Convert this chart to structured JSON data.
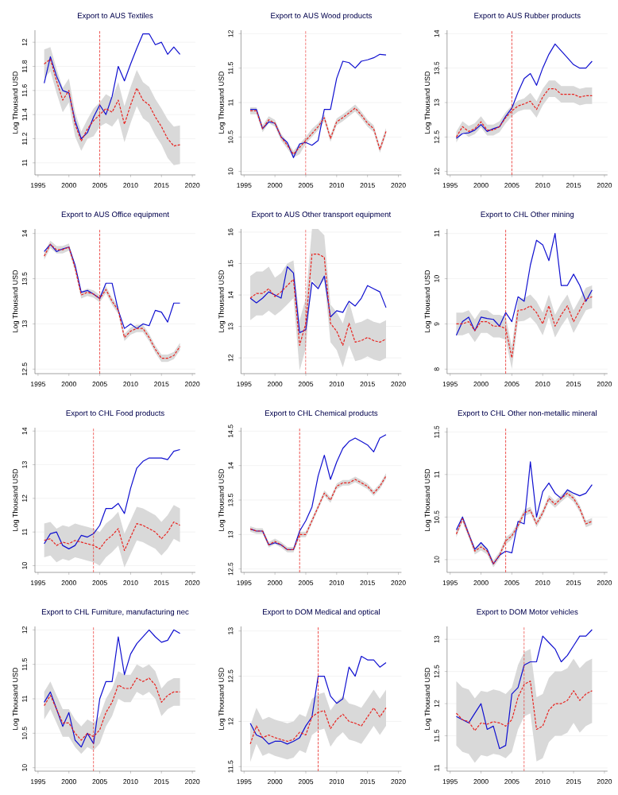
{
  "chart_data": [
    {
      "type": "line",
      "title": "Export to AUS Textiles",
      "ylabel": "Log Thousand USD",
      "x": [
        1996,
        1997,
        1998,
        1999,
        2000,
        2001,
        2002,
        2003,
        2004,
        2005,
        2006,
        2007,
        2008,
        2009,
        2010,
        2011,
        2012,
        2013,
        2014,
        2015,
        2016,
        2017,
        2018
      ],
      "xlim": [
        1994.5,
        2020.5
      ],
      "xticks": [
        1995,
        2000,
        2005,
        2010,
        2015,
        2020
      ],
      "ylim": [
        10.9,
        12.1
      ],
      "yticks": [
        11,
        11.2,
        11.4,
        11.6,
        11.8,
        12
      ],
      "grid": "y",
      "ref_lines": [
        {
          "axis": "x",
          "value": 2005,
          "color": "#e8231f",
          "line_style": "dashed"
        }
      ],
      "series": [
        {
          "color": "#e8231f",
          "line_style": "dashed",
          "values": [
            11.82,
            11.86,
            11.68,
            11.52,
            11.6,
            11.32,
            11.18,
            11.28,
            11.35,
            11.4,
            11.45,
            11.42,
            11.52,
            11.32,
            11.48,
            11.62,
            11.52,
            11.48,
            11.38,
            11.3,
            11.2,
            11.14,
            11.15
          ],
          "lower": [
            11.7,
            11.76,
            11.58,
            11.42,
            11.5,
            11.22,
            11.1,
            11.2,
            11.22,
            11.3,
            11.33,
            11.3,
            11.37,
            11.17,
            11.33,
            11.47,
            11.37,
            11.33,
            11.23,
            11.15,
            11.04,
            10.98,
            10.99
          ],
          "upper": [
            11.94,
            11.96,
            11.78,
            11.62,
            11.7,
            11.42,
            11.26,
            11.36,
            11.45,
            11.5,
            11.57,
            11.54,
            11.67,
            11.47,
            11.63,
            11.77,
            11.67,
            11.63,
            11.53,
            11.45,
            11.36,
            11.3,
            11.31
          ]
        },
        {
          "color": "#1010d0",
          "line_style": "solid",
          "values": [
            11.66,
            11.88,
            11.72,
            11.6,
            11.58,
            11.35,
            11.2,
            11.25,
            11.38,
            11.48,
            11.4,
            11.55,
            11.8,
            11.68,
            11.82,
            11.95,
            12.07,
            12.07,
            11.98,
            12.0,
            11.9,
            11.96,
            11.9
          ]
        }
      ]
    },
    {
      "type": "line",
      "title": "Export to AUS Wood products",
      "ylabel": "Log Thousand USD",
      "x": [
        1996,
        1997,
        1998,
        1999,
        2000,
        2001,
        2002,
        2003,
        2004,
        2005,
        2006,
        2007,
        2008,
        2009,
        2010,
        2011,
        2012,
        2013,
        2014,
        2015,
        2016,
        2017,
        2018
      ],
      "xlim": [
        1994.5,
        2020.5
      ],
      "xticks": [
        1995,
        2000,
        2005,
        2010,
        2015,
        2020
      ],
      "ylim": [
        9.95,
        12.05
      ],
      "yticks": [
        10,
        10.5,
        11,
        11.5,
        12
      ],
      "grid": "y",
      "ref_lines": [
        {
          "axis": "x",
          "value": 2005,
          "color": "#e8231f",
          "line_style": "dashed"
        }
      ],
      "series": [
        {
          "color": "#e8231f",
          "line_style": "dashed",
          "values": [
            10.88,
            10.88,
            10.62,
            10.75,
            10.7,
            10.5,
            10.38,
            10.25,
            10.35,
            10.45,
            10.55,
            10.65,
            10.78,
            10.48,
            10.72,
            10.78,
            10.85,
            10.92,
            10.82,
            10.7,
            10.62,
            10.32,
            10.58
          ],
          "lower": [
            10.83,
            10.83,
            10.57,
            10.7,
            10.65,
            10.45,
            10.33,
            10.2,
            10.25,
            10.4,
            10.5,
            10.6,
            10.73,
            10.43,
            10.67,
            10.73,
            10.8,
            10.87,
            10.77,
            10.65,
            10.57,
            10.27,
            10.53
          ],
          "upper": [
            10.93,
            10.93,
            10.67,
            10.8,
            10.75,
            10.55,
            10.43,
            10.3,
            10.4,
            10.5,
            10.62,
            10.7,
            10.83,
            10.53,
            10.77,
            10.83,
            10.9,
            10.97,
            10.87,
            10.75,
            10.67,
            10.37,
            10.63
          ]
        },
        {
          "color": "#1010d0",
          "line_style": "solid",
          "values": [
            10.9,
            10.9,
            10.62,
            10.72,
            10.7,
            10.5,
            10.42,
            10.2,
            10.4,
            10.42,
            10.38,
            10.45,
            10.9,
            10.9,
            11.35,
            11.6,
            11.58,
            11.5,
            11.6,
            11.62,
            11.65,
            11.7,
            11.69
          ]
        }
      ]
    },
    {
      "type": "line",
      "title": "Export to AUS Rubber products",
      "ylabel": "Log Thousand USD",
      "x": [
        1996,
        1997,
        1998,
        1999,
        2000,
        2001,
        2002,
        2003,
        2004,
        2005,
        2006,
        2007,
        2008,
        2009,
        2010,
        2011,
        2012,
        2013,
        2014,
        2015,
        2016,
        2017,
        2018
      ],
      "xlim": [
        1994.5,
        2020.5
      ],
      "xticks": [
        1995,
        2000,
        2005,
        2010,
        2015,
        2020
      ],
      "ylim": [
        11.95,
        14.05
      ],
      "yticks": [
        12,
        12.5,
        13,
        13.5,
        14
      ],
      "grid": "y",
      "ref_lines": [
        {
          "axis": "x",
          "value": 2005,
          "color": "#e8231f",
          "line_style": "dashed"
        }
      ],
      "series": [
        {
          "color": "#e8231f",
          "line_style": "dashed",
          "values": [
            12.5,
            12.65,
            12.58,
            12.62,
            12.72,
            12.6,
            12.6,
            12.65,
            12.78,
            12.88,
            12.95,
            12.98,
            13.02,
            12.9,
            13.08,
            13.2,
            13.2,
            13.12,
            13.12,
            13.12,
            13.08,
            13.1,
            13.1
          ],
          "lower": [
            12.42,
            12.57,
            12.5,
            12.54,
            12.64,
            12.52,
            12.52,
            12.57,
            12.7,
            12.8,
            12.87,
            12.9,
            12.9,
            12.78,
            12.96,
            13.08,
            13.08,
            13.0,
            13.0,
            13.0,
            12.96,
            12.98,
            12.98
          ],
          "upper": [
            12.58,
            12.73,
            12.66,
            12.7,
            12.8,
            12.68,
            12.68,
            12.73,
            12.86,
            12.96,
            13.03,
            13.06,
            13.14,
            13.02,
            13.2,
            13.32,
            13.32,
            13.24,
            13.24,
            13.24,
            13.2,
            13.22,
            13.22
          ]
        },
        {
          "color": "#1010d0",
          "line_style": "solid",
          "values": [
            12.48,
            12.55,
            12.56,
            12.6,
            12.68,
            12.58,
            12.62,
            12.65,
            12.8,
            12.92,
            13.15,
            13.35,
            13.42,
            13.25,
            13.5,
            13.7,
            13.85,
            13.75,
            13.65,
            13.55,
            13.5,
            13.5,
            13.6
          ]
        }
      ]
    },
    {
      "type": "line",
      "title": "Export to AUS Office equipment",
      "ylabel": "Log Thousand USD",
      "x": [
        1996,
        1997,
        1998,
        1999,
        2000,
        2001,
        2002,
        2003,
        2004,
        2005,
        2006,
        2007,
        2008,
        2009,
        2010,
        2011,
        2012,
        2013,
        2014,
        2015,
        2016,
        2017,
        2018
      ],
      "xlim": [
        1994.5,
        2020.5
      ],
      "xticks": [
        1995,
        2000,
        2005,
        2010,
        2015,
        2020
      ],
      "ylim": [
        12.45,
        14.05
      ],
      "yticks": [
        12.5,
        13,
        13.5,
        14
      ],
      "grid": "y",
      "ref_lines": [
        {
          "axis": "x",
          "value": 2005,
          "color": "#e8231f",
          "line_style": "dashed"
        }
      ],
      "series": [
        {
          "color": "#e8231f",
          "line_style": "dashed",
          "values": [
            13.75,
            13.88,
            13.82,
            13.82,
            13.85,
            13.62,
            13.32,
            13.35,
            13.33,
            13.28,
            13.38,
            13.25,
            13.15,
            12.85,
            12.92,
            12.95,
            12.95,
            12.85,
            12.72,
            12.62,
            12.62,
            12.65,
            12.75
          ],
          "lower": [
            13.71,
            13.84,
            13.78,
            13.78,
            13.81,
            13.58,
            13.28,
            13.31,
            13.29,
            13.24,
            13.34,
            13.21,
            13.11,
            12.81,
            12.88,
            12.91,
            12.91,
            12.81,
            12.68,
            12.58,
            12.58,
            12.61,
            12.71
          ],
          "upper": [
            13.79,
            13.92,
            13.86,
            13.86,
            13.89,
            13.66,
            13.36,
            13.39,
            13.37,
            13.32,
            13.42,
            13.29,
            13.19,
            12.89,
            12.96,
            12.99,
            12.99,
            12.89,
            12.76,
            12.66,
            12.66,
            12.69,
            12.79
          ]
        },
        {
          "color": "#1010d0",
          "line_style": "solid",
          "values": [
            13.8,
            13.88,
            13.8,
            13.83,
            13.85,
            13.65,
            13.35,
            13.37,
            13.33,
            13.28,
            13.45,
            13.45,
            13.15,
            12.95,
            13.0,
            12.95,
            13.0,
            12.98,
            13.15,
            13.13,
            13.02,
            13.23,
            13.23
          ]
        }
      ]
    },
    {
      "type": "line",
      "title": "Export to AUS Other transport equipment",
      "ylabel": "Log Thousand USD",
      "x": [
        1996,
        1997,
        1998,
        1999,
        2000,
        2001,
        2002,
        2003,
        2004,
        2005,
        2006,
        2007,
        2008,
        2009,
        2010,
        2011,
        2012,
        2013,
        2014,
        2015,
        2016,
        2017,
        2018
      ],
      "xlim": [
        1994.5,
        2020.5
      ],
      "xticks": [
        1995,
        2000,
        2005,
        2010,
        2015,
        2020
      ],
      "ylim": [
        11.5,
        16.1
      ],
      "yticks": [
        12,
        13,
        14,
        15,
        16
      ],
      "grid": "y",
      "ref_lines": [
        {
          "axis": "x",
          "value": 2005,
          "color": "#e8231f",
          "line_style": "dashed"
        }
      ],
      "series": [
        {
          "color": "#e8231f",
          "line_style": "dashed",
          "values": [
            13.9,
            14.05,
            14.05,
            14.2,
            13.95,
            14.1,
            14.3,
            14.5,
            12.4,
            13.1,
            15.3,
            15.3,
            15.2,
            13.1,
            12.85,
            12.4,
            13.1,
            12.5,
            12.55,
            12.65,
            12.55,
            12.5,
            12.6
          ],
          "lower": [
            13.2,
            13.35,
            13.35,
            13.5,
            13.35,
            13.5,
            13.7,
            13.9,
            11.6,
            12.3,
            14.5,
            14.2,
            14.5,
            12.5,
            12.25,
            11.7,
            12.4,
            11.9,
            11.95,
            12.05,
            11.95,
            11.9,
            12.0
          ],
          "upper": [
            14.6,
            14.75,
            14.75,
            14.9,
            14.55,
            14.7,
            15.0,
            15.1,
            13.2,
            13.9,
            16.1,
            16.1,
            15.9,
            13.7,
            13.45,
            13.1,
            13.8,
            13.1,
            13.15,
            13.25,
            13.15,
            13.1,
            13.2
          ]
        },
        {
          "color": "#1010d0",
          "line_style": "solid",
          "values": [
            13.9,
            13.75,
            13.9,
            14.1,
            14.0,
            13.9,
            14.9,
            14.7,
            12.8,
            12.9,
            14.4,
            14.2,
            14.6,
            13.3,
            13.5,
            13.45,
            13.8,
            13.65,
            13.9,
            14.3,
            14.2,
            14.1,
            13.6
          ]
        }
      ]
    },
    {
      "type": "line",
      "title": "Export to CHL Other mining",
      "ylabel": "Log Thousand USD",
      "x": [
        1996,
        1997,
        1998,
        1999,
        2000,
        2001,
        2002,
        2003,
        2004,
        2005,
        2006,
        2007,
        2008,
        2009,
        2010,
        2011,
        2012,
        2013,
        2014,
        2015,
        2016,
        2017,
        2018
      ],
      "xlim": [
        1994.5,
        2020.5
      ],
      "xticks": [
        1995,
        2000,
        2005,
        2010,
        2015,
        2020
      ],
      "ylim": [
        7.9,
        11.1
      ],
      "yticks": [
        8,
        9,
        10,
        11
      ],
      "grid": "y",
      "ref_lines": [
        {
          "axis": "x",
          "value": 2004,
          "color": "#e8231f",
          "line_style": "dashed"
        }
      ],
      "series": [
        {
          "color": "#e8231f",
          "line_style": "dashed",
          "values": [
            9.0,
            9.0,
            9.05,
            8.85,
            9.05,
            9.05,
            8.95,
            8.95,
            8.9,
            8.25,
            9.3,
            9.32,
            9.4,
            9.25,
            9.0,
            9.4,
            8.95,
            9.2,
            9.4,
            9.05,
            9.3,
            9.55,
            9.6
          ],
          "lower": [
            8.75,
            8.75,
            8.8,
            8.6,
            8.8,
            8.8,
            8.7,
            8.7,
            8.65,
            8.0,
            9.05,
            9.07,
            9.15,
            9.0,
            8.75,
            9.15,
            8.7,
            8.95,
            9.15,
            8.8,
            9.05,
            9.3,
            9.35
          ],
          "upper": [
            9.25,
            9.25,
            9.3,
            9.1,
            9.3,
            9.3,
            9.2,
            9.2,
            9.15,
            8.5,
            9.55,
            9.57,
            9.65,
            9.5,
            9.25,
            9.65,
            9.2,
            9.45,
            9.65,
            9.3,
            9.55,
            9.8,
            9.85
          ]
        },
        {
          "color": "#1010d0",
          "line_style": "solid",
          "values": [
            8.75,
            9.05,
            9.15,
            8.85,
            9.15,
            9.12,
            9.1,
            8.95,
            9.25,
            9.05,
            9.6,
            9.5,
            10.3,
            10.85,
            10.75,
            10.4,
            11.0,
            9.85,
            9.85,
            10.1,
            9.85,
            9.5,
            9.75
          ]
        }
      ]
    },
    {
      "type": "line",
      "title": "Export to CHL Food products",
      "ylabel": "Log Thousand USD",
      "x": [
        1996,
        1997,
        1998,
        1999,
        2000,
        2001,
        2002,
        2003,
        2004,
        2005,
        2006,
        2007,
        2008,
        2009,
        2010,
        2011,
        2012,
        2013,
        2014,
        2015,
        2016,
        2017,
        2018
      ],
      "xlim": [
        1994.5,
        2020.5
      ],
      "xticks": [
        1995,
        2000,
        2005,
        2010,
        2015,
        2020
      ],
      "ylim": [
        9.8,
        14.1
      ],
      "yticks": [
        10,
        11,
        12,
        13,
        14
      ],
      "grid": "y",
      "ref_lines": [
        {
          "axis": "x",
          "value": 2004,
          "color": "#e8231f",
          "line_style": "dashed"
        }
      ],
      "series": [
        {
          "color": "#e8231f",
          "line_style": "dashed",
          "values": [
            10.75,
            10.8,
            10.6,
            10.7,
            10.65,
            10.75,
            10.7,
            10.65,
            10.6,
            10.5,
            10.75,
            10.9,
            11.1,
            10.45,
            10.85,
            11.25,
            11.2,
            11.1,
            11.0,
            10.8,
            11.0,
            11.3,
            11.2
          ],
          "lower": [
            10.25,
            10.3,
            10.1,
            10.2,
            10.15,
            10.25,
            10.2,
            10.15,
            10.1,
            10.0,
            10.25,
            10.4,
            10.6,
            9.95,
            10.35,
            10.75,
            10.7,
            10.6,
            10.5,
            10.3,
            10.5,
            10.8,
            10.7
          ],
          "upper": [
            11.25,
            11.3,
            11.1,
            11.2,
            11.15,
            11.25,
            11.2,
            11.15,
            11.1,
            11.0,
            11.25,
            11.4,
            11.6,
            10.95,
            11.35,
            11.75,
            11.7,
            11.6,
            11.5,
            11.3,
            11.5,
            11.8,
            11.7
          ]
        },
        {
          "color": "#1010d0",
          "line_style": "solid",
          "values": [
            10.65,
            10.95,
            11.0,
            10.6,
            10.5,
            10.6,
            10.9,
            10.85,
            10.95,
            11.2,
            11.7,
            11.7,
            11.85,
            11.55,
            12.3,
            12.9,
            13.1,
            13.2,
            13.2,
            13.2,
            13.15,
            13.4,
            13.45
          ]
        }
      ]
    },
    {
      "type": "line",
      "title": "Export to CHL Chemical products",
      "ylabel": "Log Thousand USD",
      "x": [
        1996,
        1997,
        1998,
        1999,
        2000,
        2001,
        2002,
        2003,
        2004,
        2005,
        2006,
        2007,
        2008,
        2009,
        2010,
        2011,
        2012,
        2013,
        2014,
        2015,
        2016,
        2017,
        2018
      ],
      "xlim": [
        1994.5,
        2020.5
      ],
      "xticks": [
        1995,
        2000,
        2005,
        2010,
        2015,
        2020
      ],
      "ylim": [
        12.45,
        14.55
      ],
      "yticks": [
        12.5,
        13,
        13.5,
        14,
        14.5
      ],
      "grid": "y",
      "ref_lines": [
        {
          "axis": "x",
          "value": 2004,
          "color": "#e8231f",
          "line_style": "dashed"
        }
      ],
      "series": [
        {
          "color": "#e8231f",
          "line_style": "dashed",
          "values": [
            13.08,
            13.05,
            13.05,
            12.85,
            12.9,
            12.85,
            12.78,
            12.78,
            13.0,
            13.0,
            13.2,
            13.4,
            13.6,
            13.5,
            13.7,
            13.75,
            13.75,
            13.8,
            13.75,
            13.7,
            13.6,
            13.7,
            13.85
          ],
          "lower": [
            13.04,
            13.01,
            13.01,
            12.81,
            12.86,
            12.81,
            12.74,
            12.74,
            12.96,
            12.96,
            13.16,
            13.36,
            13.56,
            13.46,
            13.66,
            13.71,
            13.71,
            13.76,
            13.71,
            13.66,
            13.56,
            13.66,
            13.81
          ],
          "upper": [
            13.12,
            13.09,
            13.09,
            12.89,
            12.94,
            12.89,
            12.82,
            12.82,
            13.04,
            13.04,
            13.24,
            13.44,
            13.64,
            13.54,
            13.74,
            13.79,
            13.79,
            13.84,
            13.79,
            13.74,
            13.64,
            13.74,
            13.89
          ]
        },
        {
          "color": "#1010d0",
          "line_style": "solid",
          "values": [
            13.08,
            13.05,
            13.05,
            12.85,
            12.88,
            12.85,
            12.78,
            12.78,
            13.05,
            13.2,
            13.4,
            13.85,
            14.15,
            13.8,
            14.05,
            14.25,
            14.35,
            14.4,
            14.35,
            14.3,
            14.2,
            14.4,
            14.45
          ]
        }
      ]
    },
    {
      "type": "line",
      "title": "Export to CHL Other non-metallic mineral",
      "ylabel": "Log Thousand USD",
      "x": [
        1996,
        1997,
        1998,
        1999,
        2000,
        2001,
        2002,
        2003,
        2004,
        2005,
        2006,
        2007,
        2008,
        2009,
        2010,
        2011,
        2012,
        2013,
        2014,
        2015,
        2016,
        2017,
        2018
      ],
      "xlim": [
        1994.5,
        2020.5
      ],
      "xticks": [
        1995,
        2000,
        2005,
        2010,
        2015,
        2020
      ],
      "ylim": [
        9.85,
        11.55
      ],
      "yticks": [
        10,
        10.5,
        11,
        11.5
      ],
      "grid": "y",
      "ref_lines": [
        {
          "axis": "x",
          "value": 2004,
          "color": "#e8231f",
          "line_style": "dashed"
        }
      ],
      "series": [
        {
          "color": "#e8231f",
          "line_style": "dashed",
          "values": [
            10.3,
            10.48,
            10.3,
            10.1,
            10.15,
            10.1,
            9.95,
            10.05,
            10.22,
            10.28,
            10.4,
            10.55,
            10.58,
            10.42,
            10.55,
            10.72,
            10.65,
            10.72,
            10.78,
            10.72,
            10.6,
            10.42,
            10.45
          ],
          "lower": [
            10.26,
            10.44,
            10.26,
            10.06,
            10.11,
            10.06,
            9.91,
            10.01,
            10.18,
            10.24,
            10.36,
            10.51,
            10.54,
            10.38,
            10.51,
            10.68,
            10.61,
            10.68,
            10.74,
            10.68,
            10.56,
            10.38,
            10.41
          ],
          "upper": [
            10.34,
            10.52,
            10.34,
            10.14,
            10.19,
            10.14,
            9.99,
            10.09,
            10.26,
            10.32,
            10.44,
            10.59,
            10.62,
            10.46,
            10.59,
            10.76,
            10.69,
            10.76,
            10.82,
            10.76,
            10.64,
            10.46,
            10.49
          ]
        },
        {
          "color": "#1010d0",
          "line_style": "solid",
          "values": [
            10.35,
            10.5,
            10.3,
            10.12,
            10.2,
            10.12,
            9.95,
            10.05,
            10.1,
            10.08,
            10.45,
            10.42,
            11.15,
            10.5,
            10.8,
            10.9,
            10.78,
            10.72,
            10.82,
            10.78,
            10.75,
            10.78,
            10.88
          ]
        }
      ]
    },
    {
      "type": "line",
      "title": "Export to CHL Furniture, manufacturing nec",
      "ylabel": "Log Thousand USD",
      "x": [
        1996,
        1997,
        1998,
        1999,
        2000,
        2001,
        2002,
        2003,
        2004,
        2005,
        2006,
        2007,
        2008,
        2009,
        2010,
        2011,
        2012,
        2013,
        2014,
        2015,
        2016,
        2017,
        2018
      ],
      "xlim": [
        1994.5,
        2020.5
      ],
      "xticks": [
        1995,
        2000,
        2005,
        2010,
        2015,
        2020
      ],
      "ylim": [
        9.95,
        12.05
      ],
      "yticks": [
        10,
        10.5,
        11,
        11.5,
        12
      ],
      "grid": "y",
      "ref_lines": [
        {
          "axis": "x",
          "value": 2004,
          "color": "#e8231f",
          "line_style": "dashed"
        }
      ],
      "series": [
        {
          "color": "#e8231f",
          "line_style": "dashed",
          "values": [
            10.9,
            11.05,
            10.85,
            10.65,
            10.65,
            10.5,
            10.4,
            10.5,
            10.45,
            10.55,
            10.8,
            10.95,
            11.2,
            11.15,
            11.15,
            11.3,
            11.25,
            11.3,
            11.2,
            10.95,
            11.05,
            11.1,
            11.1
          ],
          "lower": [
            10.7,
            10.85,
            10.65,
            10.45,
            10.45,
            10.3,
            10.2,
            10.3,
            10.25,
            10.35,
            10.6,
            10.75,
            11.0,
            10.95,
            10.95,
            11.1,
            11.05,
            11.1,
            11.0,
            10.75,
            10.85,
            10.9,
            10.9
          ],
          "upper": [
            11.1,
            11.25,
            11.05,
            10.85,
            10.85,
            10.7,
            10.6,
            10.7,
            10.65,
            10.75,
            11.0,
            11.15,
            11.4,
            11.35,
            11.35,
            11.5,
            11.45,
            11.5,
            11.4,
            11.15,
            11.25,
            11.3,
            11.3
          ]
        },
        {
          "color": "#1010d0",
          "line_style": "solid",
          "values": [
            10.95,
            11.1,
            10.85,
            10.6,
            10.8,
            10.4,
            10.3,
            10.5,
            10.35,
            11.0,
            11.25,
            11.25,
            11.9,
            11.35,
            11.65,
            11.8,
            11.9,
            12.0,
            11.9,
            11.82,
            11.85,
            12.0,
            11.95
          ]
        }
      ]
    },
    {
      "type": "line",
      "title": "Export to DOM Medical and optical",
      "ylabel": "Log Thousand USD",
      "x": [
        1996,
        1997,
        1998,
        1999,
        2000,
        2001,
        2002,
        2003,
        2004,
        2005,
        2006,
        2007,
        2008,
        2009,
        2010,
        2011,
        2012,
        2013,
        2014,
        2015,
        2016,
        2017,
        2018
      ],
      "xlim": [
        1994.5,
        2020.5
      ],
      "xticks": [
        1995,
        2000,
        2005,
        2010,
        2015,
        2020
      ],
      "ylim": [
        11.45,
        13.05
      ],
      "yticks": [
        11.5,
        12,
        12.5,
        13
      ],
      "grid": "y",
      "ref_lines": [
        {
          "axis": "x",
          "value": 2007,
          "color": "#e8231f",
          "line_style": "dashed"
        }
      ],
      "series": [
        {
          "color": "#e8231f",
          "line_style": "dashed",
          "values": [
            11.75,
            11.95,
            11.82,
            11.85,
            11.82,
            11.8,
            11.78,
            11.8,
            11.88,
            11.85,
            12.05,
            12.1,
            12.12,
            11.92,
            12.02,
            12.08,
            12.0,
            11.98,
            11.95,
            12.05,
            12.15,
            12.05,
            12.15
          ],
          "lower": [
            11.55,
            11.75,
            11.62,
            11.65,
            11.62,
            11.6,
            11.58,
            11.6,
            11.68,
            11.65,
            11.85,
            11.9,
            11.92,
            11.72,
            11.82,
            11.88,
            11.8,
            11.78,
            11.75,
            11.85,
            11.95,
            11.85,
            11.95
          ],
          "upper": [
            11.95,
            12.15,
            12.02,
            12.05,
            12.02,
            12.0,
            11.98,
            12.0,
            12.08,
            12.05,
            12.25,
            12.3,
            12.32,
            12.12,
            12.22,
            12.28,
            12.2,
            12.18,
            12.15,
            12.25,
            12.35,
            12.25,
            12.35
          ]
        },
        {
          "color": "#1010d0",
          "line_style": "solid",
          "values": [
            11.98,
            11.85,
            11.82,
            11.75,
            11.78,
            11.78,
            11.75,
            11.78,
            11.82,
            11.95,
            12.05,
            12.5,
            12.5,
            12.28,
            12.2,
            12.25,
            12.6,
            12.5,
            12.72,
            12.68,
            12.68,
            12.6,
            12.65
          ]
        }
      ]
    },
    {
      "type": "line",
      "title": "Export to DOM Motor vehicles",
      "ylabel": "Log Thousand USD",
      "x": [
        1996,
        1997,
        1998,
        1999,
        2000,
        2001,
        2002,
        2003,
        2004,
        2005,
        2006,
        2007,
        2008,
        2009,
        2010,
        2011,
        2012,
        2013,
        2014,
        2015,
        2016,
        2017,
        2018
      ],
      "xlim": [
        1994.5,
        2020.5
      ],
      "xticks": [
        1995,
        2000,
        2005,
        2010,
        2015,
        2020
      ],
      "ylim": [
        10.95,
        13.2
      ],
      "yticks": [
        11,
        11.5,
        12,
        12.5,
        13
      ],
      "grid": "y",
      "ref_lines": [
        {
          "axis": "x",
          "value": 2007,
          "color": "#e8231f",
          "line_style": "dashed"
        }
      ],
      "series": [
        {
          "color": "#e8231f",
          "line_style": "dashed",
          "values": [
            11.85,
            11.75,
            11.72,
            11.58,
            11.7,
            11.68,
            11.72,
            11.7,
            11.65,
            11.75,
            12.1,
            12.3,
            12.35,
            11.6,
            11.65,
            11.9,
            12.0,
            12.0,
            12.05,
            12.2,
            12.05,
            12.15,
            12.2
          ],
          "lower": [
            11.35,
            11.25,
            11.22,
            11.08,
            11.2,
            11.18,
            11.22,
            11.2,
            11.15,
            11.25,
            11.6,
            11.8,
            11.85,
            11.1,
            11.15,
            11.4,
            11.5,
            11.5,
            11.55,
            11.7,
            11.55,
            11.65,
            11.7
          ],
          "upper": [
            12.35,
            12.25,
            12.22,
            12.08,
            12.2,
            12.18,
            12.22,
            12.2,
            12.15,
            12.25,
            12.6,
            12.8,
            12.85,
            12.1,
            12.15,
            12.4,
            12.5,
            12.5,
            12.55,
            12.7,
            12.55,
            12.65,
            12.7
          ]
        },
        {
          "color": "#1010d0",
          "line_style": "solid",
          "values": [
            11.8,
            11.75,
            11.7,
            11.85,
            12.0,
            11.6,
            11.65,
            11.3,
            11.35,
            12.15,
            12.25,
            12.6,
            12.65,
            12.65,
            13.05,
            12.95,
            12.85,
            12.65,
            12.75,
            12.9,
            13.05,
            13.05,
            13.15
          ]
        }
      ]
    }
  ]
}
